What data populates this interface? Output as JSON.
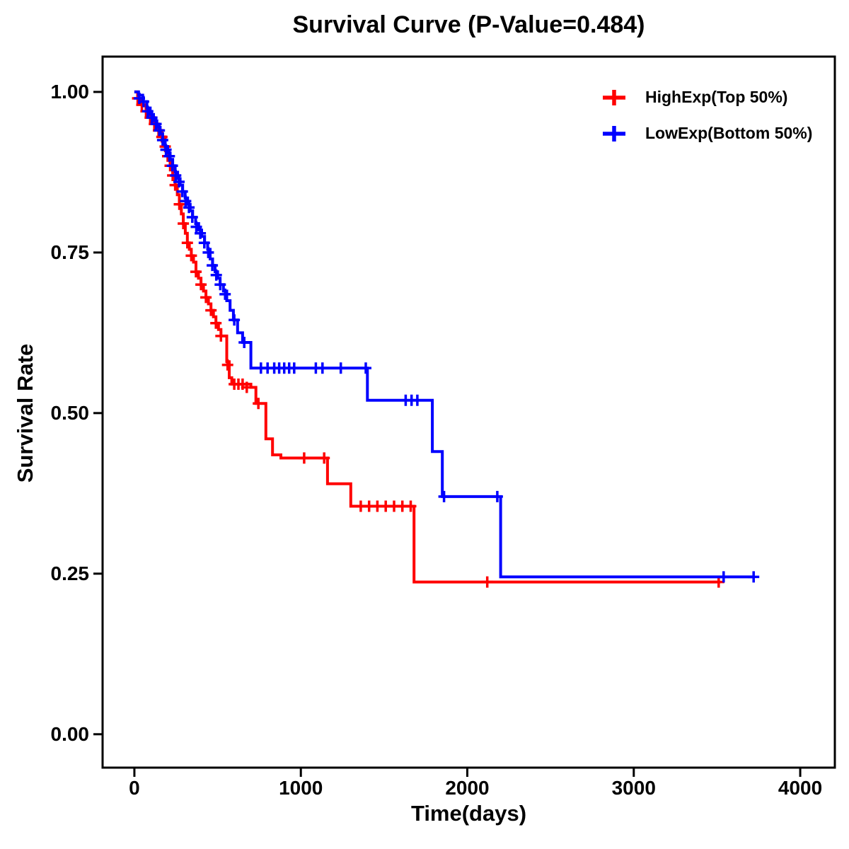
{
  "title": "Survival Curve (P-Value=0.484)",
  "chart_data": {
    "type": "line",
    "subtype": "kaplan-meier-step",
    "title": "Survival Curve (P-Value=0.484)",
    "xlabel": "Time(days)",
    "ylabel": "Survival Rate",
    "xlim": [
      -191,
      4208
    ],
    "ylim": [
      -0.052,
      1.055
    ],
    "grid": false,
    "legend_position": "top-right",
    "xticks": [
      {
        "value": 0,
        "label": "0"
      },
      {
        "value": 1000,
        "label": "1000"
      },
      {
        "value": 2000,
        "label": "2000"
      },
      {
        "value": 3000,
        "label": "3000"
      },
      {
        "value": 4000,
        "label": "4000"
      }
    ],
    "yticks": [
      {
        "value": 1.0,
        "label": "1.00"
      },
      {
        "value": 0.75,
        "label": "0.75"
      },
      {
        "value": 0.5,
        "label": "0.50"
      },
      {
        "value": 0.25,
        "label": "0.25"
      },
      {
        "value": 0.0,
        "label": "0.00"
      }
    ],
    "series": [
      {
        "name": "HighExp(Top 50%)",
        "color": "#FF0000",
        "steps": [
          [
            0,
            1.0
          ],
          [
            20,
            0.99
          ],
          [
            45,
            0.98
          ],
          [
            70,
            0.97
          ],
          [
            95,
            0.96
          ],
          [
            120,
            0.95
          ],
          [
            145,
            0.94
          ],
          [
            165,
            0.93
          ],
          [
            185,
            0.915
          ],
          [
            200,
            0.9
          ],
          [
            215,
            0.885
          ],
          [
            230,
            0.87
          ],
          [
            245,
            0.855
          ],
          [
            258,
            0.84
          ],
          [
            270,
            0.825
          ],
          [
            282,
            0.81
          ],
          [
            294,
            0.795
          ],
          [
            306,
            0.78
          ],
          [
            318,
            0.765
          ],
          [
            330,
            0.755
          ],
          [
            342,
            0.745
          ],
          [
            355,
            0.735
          ],
          [
            370,
            0.72
          ],
          [
            385,
            0.71
          ],
          [
            400,
            0.7
          ],
          [
            415,
            0.69
          ],
          [
            430,
            0.68
          ],
          [
            445,
            0.67
          ],
          [
            460,
            0.66
          ],
          [
            475,
            0.65
          ],
          [
            490,
            0.64
          ],
          [
            505,
            0.63
          ],
          [
            520,
            0.62
          ],
          [
            555,
            0.58
          ],
          [
            570,
            0.555
          ],
          [
            585,
            0.545
          ],
          [
            700,
            0.54
          ],
          [
            730,
            0.515
          ],
          [
            790,
            0.46
          ],
          [
            830,
            0.435
          ],
          [
            880,
            0.43
          ],
          [
            1160,
            0.39
          ],
          [
            1300,
            0.355
          ],
          [
            1680,
            0.237
          ],
          [
            3520,
            0.237
          ]
        ],
        "censors": [
          [
            20,
            0.99
          ],
          [
            45,
            0.98
          ],
          [
            70,
            0.97
          ],
          [
            95,
            0.96
          ],
          [
            120,
            0.95
          ],
          [
            145,
            0.94
          ],
          [
            165,
            0.93
          ],
          [
            185,
            0.915
          ],
          [
            200,
            0.9
          ],
          [
            215,
            0.885
          ],
          [
            230,
            0.87
          ],
          [
            245,
            0.855
          ],
          [
            270,
            0.825
          ],
          [
            294,
            0.795
          ],
          [
            318,
            0.765
          ],
          [
            342,
            0.745
          ],
          [
            370,
            0.72
          ],
          [
            400,
            0.7
          ],
          [
            430,
            0.68
          ],
          [
            460,
            0.66
          ],
          [
            490,
            0.64
          ],
          [
            520,
            0.62
          ],
          [
            560,
            0.575
          ],
          [
            600,
            0.545
          ],
          [
            625,
            0.545
          ],
          [
            650,
            0.545
          ],
          [
            675,
            0.54
          ],
          [
            745,
            0.515
          ],
          [
            1020,
            0.43
          ],
          [
            1140,
            0.43
          ],
          [
            1360,
            0.355
          ],
          [
            1410,
            0.355
          ],
          [
            1460,
            0.355
          ],
          [
            1510,
            0.355
          ],
          [
            1560,
            0.355
          ],
          [
            1610,
            0.355
          ],
          [
            1660,
            0.355
          ],
          [
            2120,
            0.237
          ],
          [
            3510,
            0.237
          ]
        ]
      },
      {
        "name": "LowExp(Bottom 50%)",
        "color": "#0000FF",
        "steps": [
          [
            0,
            1.0
          ],
          [
            25,
            0.995
          ],
          [
            50,
            0.985
          ],
          [
            75,
            0.975
          ],
          [
            95,
            0.965
          ],
          [
            115,
            0.955
          ],
          [
            135,
            0.945
          ],
          [
            155,
            0.935
          ],
          [
            170,
            0.925
          ],
          [
            185,
            0.915
          ],
          [
            200,
            0.905
          ],
          [
            215,
            0.895
          ],
          [
            230,
            0.885
          ],
          [
            245,
            0.875
          ],
          [
            260,
            0.865
          ],
          [
            275,
            0.855
          ],
          [
            290,
            0.845
          ],
          [
            305,
            0.835
          ],
          [
            320,
            0.825
          ],
          [
            335,
            0.815
          ],
          [
            350,
            0.805
          ],
          [
            368,
            0.795
          ],
          [
            386,
            0.785
          ],
          [
            404,
            0.775
          ],
          [
            422,
            0.765
          ],
          [
            440,
            0.755
          ],
          [
            455,
            0.74
          ],
          [
            470,
            0.73
          ],
          [
            485,
            0.72
          ],
          [
            500,
            0.71
          ],
          [
            515,
            0.7
          ],
          [
            535,
            0.69
          ],
          [
            555,
            0.675
          ],
          [
            575,
            0.66
          ],
          [
            595,
            0.645
          ],
          [
            620,
            0.625
          ],
          [
            650,
            0.61
          ],
          [
            700,
            0.57
          ],
          [
            1400,
            0.52
          ],
          [
            1790,
            0.44
          ],
          [
            1850,
            0.37
          ],
          [
            2200,
            0.245
          ],
          [
            3720,
            0.245
          ]
        ],
        "censors": [
          [
            30,
            0.99
          ],
          [
            55,
            0.985
          ],
          [
            80,
            0.97
          ],
          [
            105,
            0.96
          ],
          [
            130,
            0.95
          ],
          [
            150,
            0.94
          ],
          [
            170,
            0.925
          ],
          [
            190,
            0.91
          ],
          [
            210,
            0.9
          ],
          [
            228,
            0.885
          ],
          [
            248,
            0.87
          ],
          [
            268,
            0.86
          ],
          [
            288,
            0.845
          ],
          [
            308,
            0.83
          ],
          [
            328,
            0.82
          ],
          [
            348,
            0.805
          ],
          [
            372,
            0.79
          ],
          [
            396,
            0.78
          ],
          [
            420,
            0.765
          ],
          [
            444,
            0.75
          ],
          [
            468,
            0.73
          ],
          [
            492,
            0.715
          ],
          [
            516,
            0.7
          ],
          [
            545,
            0.685
          ],
          [
            600,
            0.645
          ],
          [
            660,
            0.61
          ],
          [
            760,
            0.57
          ],
          [
            800,
            0.57
          ],
          [
            840,
            0.57
          ],
          [
            870,
            0.57
          ],
          [
            900,
            0.57
          ],
          [
            930,
            0.57
          ],
          [
            960,
            0.57
          ],
          [
            1090,
            0.57
          ],
          [
            1130,
            0.57
          ],
          [
            1240,
            0.57
          ],
          [
            1390,
            0.57
          ],
          [
            1630,
            0.52
          ],
          [
            1665,
            0.52
          ],
          [
            1700,
            0.52
          ],
          [
            1860,
            0.37
          ],
          [
            2180,
            0.37
          ],
          [
            3540,
            0.245
          ],
          [
            3720,
            0.245
          ]
        ]
      }
    ]
  }
}
